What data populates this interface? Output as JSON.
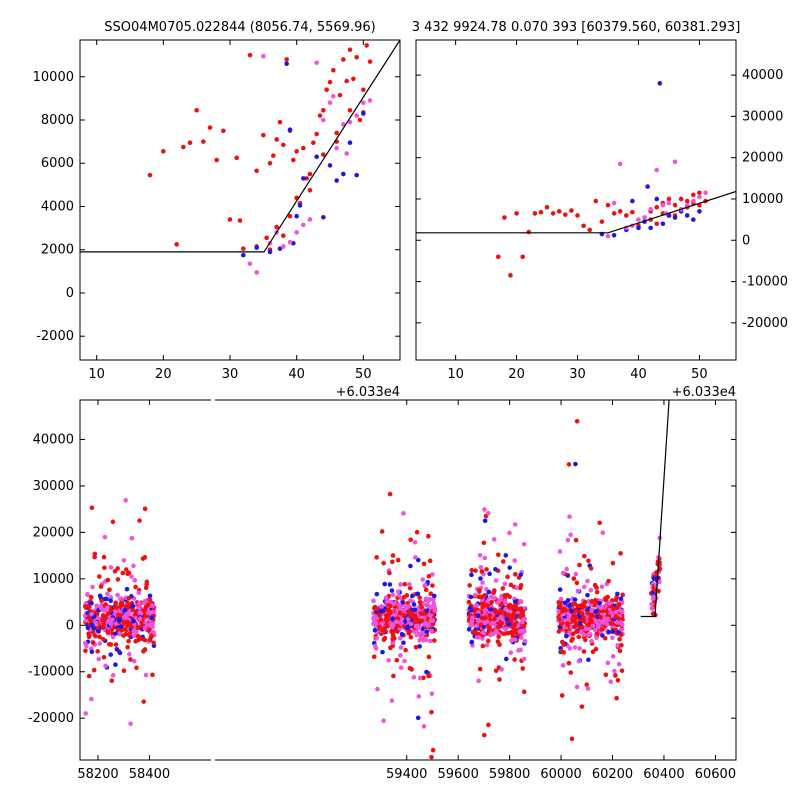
{
  "colors": {
    "red": "#ee1111",
    "blue": "#1a1ae6",
    "pink": "#ee55dd",
    "model_line": "#000000"
  },
  "chart_data": [
    {
      "type": "scatter",
      "title": "SSO04M0705.022844 (8056.74, 5569.96)",
      "x_offset_label": "+6.033e4",
      "xlim": [
        7.5,
        55.5
      ],
      "ylim": [
        -3100,
        11700
      ],
      "xticks": [
        10,
        20,
        30,
        40,
        50
      ],
      "yticks": [
        -2000,
        0,
        2000,
        4000,
        6000,
        8000,
        10000
      ],
      "yaxis_side": "left",
      "model_line": [
        [
          7.5,
          1900
        ],
        [
          35.1,
          1900
        ],
        [
          55.5,
          11700
        ]
      ],
      "series": [
        {
          "color_key": "red",
          "points": [
            [
              18,
              5450
            ],
            [
              20,
              6550
            ],
            [
              22,
              2250
            ],
            [
              23,
              6750
            ],
            [
              24,
              6950
            ],
            [
              25,
              8450
            ],
            [
              26,
              7000
            ],
            [
              27,
              7650
            ],
            [
              28,
              6150
            ],
            [
              29,
              7500
            ],
            [
              30,
              3400
            ],
            [
              31,
              6250
            ],
            [
              31.5,
              3350
            ],
            [
              32,
              2050
            ],
            [
              33,
              11000
            ],
            [
              34,
              5650
            ],
            [
              35,
              7300
            ],
            [
              35.5,
              2550
            ],
            [
              36,
              6000
            ],
            [
              36.5,
              6350
            ],
            [
              37,
              7100
            ],
            [
              37.5,
              7900
            ],
            [
              38,
              6850
            ],
            [
              38.5,
              10800
            ],
            [
              39,
              7500
            ],
            [
              39.5,
              6150
            ],
            [
              40,
              6550
            ],
            [
              40.5,
              4150
            ],
            [
              41,
              6700
            ],
            [
              41.5,
              5300
            ],
            [
              42,
              4750
            ],
            [
              42.5,
              6950
            ],
            [
              43,
              7350
            ],
            [
              43.5,
              8200
            ],
            [
              44,
              8450
            ],
            [
              44.5,
              9400
            ],
            [
              45,
              9750
            ],
            [
              45.5,
              10300
            ],
            [
              46,
              7000
            ],
            [
              46.5,
              9150
            ],
            [
              47,
              10800
            ],
            [
              47.5,
              9800
            ],
            [
              48,
              11250
            ],
            [
              48.5,
              9900
            ],
            [
              49,
              10900
            ],
            [
              49.5,
              8000
            ],
            [
              50,
              8350
            ],
            [
              50.5,
              11450
            ],
            [
              51,
              10700
            ],
            [
              37,
              3050
            ],
            [
              39,
              3550
            ],
            [
              40,
              4400
            ],
            [
              42,
              5500
            ],
            [
              44,
              6400
            ],
            [
              46,
              7400
            ],
            [
              48,
              8450
            ],
            [
              50,
              9400
            ],
            [
              38,
              2650
            ],
            [
              36,
              2000
            ],
            [
              34,
              2150
            ]
          ]
        },
        {
          "color_key": "blue",
          "points": [
            [
              32,
              1750
            ],
            [
              34,
              2100
            ],
            [
              36,
              1900
            ],
            [
              37.5,
              2050
            ],
            [
              38.5,
              10600
            ],
            [
              39.5,
              2300
            ],
            [
              40,
              3550
            ],
            [
              40.5,
              4050
            ],
            [
              41,
              5300
            ],
            [
              44,
              3500
            ],
            [
              45,
              5900
            ],
            [
              46,
              5200
            ],
            [
              47,
              5500
            ],
            [
              48,
              6950
            ],
            [
              49,
              5450
            ],
            [
              50,
              8300
            ],
            [
              39,
              7550
            ],
            [
              43,
              6300
            ]
          ]
        },
        {
          "color_key": "pink",
          "points": [
            [
              33,
              1350
            ],
            [
              34,
              950
            ],
            [
              35,
              10950
            ],
            [
              36,
              2300
            ],
            [
              37,
              2800
            ],
            [
              38,
              2150
            ],
            [
              39,
              2350
            ],
            [
              40,
              2800
            ],
            [
              41,
              3150
            ],
            [
              42,
              3400
            ],
            [
              43,
              10650
            ],
            [
              44,
              8000
            ],
            [
              45,
              8800
            ],
            [
              46,
              6700
            ],
            [
              47,
              7800
            ],
            [
              48,
              7900
            ],
            [
              49,
              8200
            ],
            [
              50,
              8800
            ],
            [
              51,
              8900
            ],
            [
              45.5,
              9100
            ],
            [
              47.5,
              6450
            ]
          ]
        }
      ]
    },
    {
      "type": "scatter",
      "title": "3 432 9924.78 0.070 393 [60379.560, 60381.293]",
      "x_offset_label": "+6.033e4",
      "xlim": [
        3.5,
        56
      ],
      "ylim": [
        -29000,
        48500
      ],
      "xticks": [
        10,
        20,
        30,
        40,
        50
      ],
      "yticks": [
        -20000,
        -10000,
        0,
        10000,
        20000,
        30000,
        40000
      ],
      "yaxis_side": "right",
      "model_line": [
        [
          3.5,
          1800
        ],
        [
          35,
          1800
        ],
        [
          56,
          11800
        ]
      ],
      "series": [
        {
          "color_key": "red",
          "points": [
            [
              17,
              -4000
            ],
            [
              18,
              5500
            ],
            [
              19,
              -8500
            ],
            [
              20,
              6500
            ],
            [
              21,
              -4000
            ],
            [
              22,
              2000
            ],
            [
              23,
              6500
            ],
            [
              24,
              6800
            ],
            [
              25,
              8000
            ],
            [
              26,
              6500
            ],
            [
              27,
              7000
            ],
            [
              28,
              6200
            ],
            [
              29,
              7200
            ],
            [
              30,
              6000
            ],
            [
              31,
              3500
            ],
            [
              32,
              2500
            ],
            [
              33,
              9500
            ],
            [
              34,
              4500
            ],
            [
              35,
              8500
            ],
            [
              36,
              6500
            ],
            [
              37,
              7000
            ],
            [
              38,
              6000
            ],
            [
              39,
              6800
            ],
            [
              40,
              3500
            ],
            [
              41,
              5500
            ],
            [
              42,
              7000
            ],
            [
              43,
              8000
            ],
            [
              44,
              9000
            ],
            [
              45,
              10000
            ],
            [
              46,
              8500
            ],
            [
              47,
              7500
            ],
            [
              48,
              8000
            ],
            [
              49,
              9000
            ],
            [
              50,
              8500
            ],
            [
              51,
              9500
            ],
            [
              42,
              5000
            ],
            [
              44,
              6500
            ],
            [
              46,
              6000
            ],
            [
              48,
              9500
            ],
            [
              43,
              4000
            ],
            [
              45,
              6000
            ],
            [
              47,
              10000
            ],
            [
              49,
              11000
            ],
            [
              50,
              11500
            ]
          ]
        },
        {
          "color_key": "blue",
          "points": [
            [
              34,
              1500
            ],
            [
              36,
              1200
            ],
            [
              38,
              2500
            ],
            [
              39,
              9500
            ],
            [
              40,
              3000
            ],
            [
              41,
              4500
            ],
            [
              42,
              3000
            ],
            [
              43.5,
              38000
            ],
            [
              44,
              4000
            ],
            [
              45,
              6000
            ],
            [
              46,
              5500
            ],
            [
              47,
              7000
            ],
            [
              48,
              6000
            ],
            [
              49,
              5000
            ],
            [
              50,
              7000
            ],
            [
              41.5,
              13000
            ],
            [
              43,
              10000
            ]
          ]
        },
        {
          "color_key": "pink",
          "points": [
            [
              35,
              1000
            ],
            [
              36,
              9000
            ],
            [
              37,
              18500
            ],
            [
              38,
              3000
            ],
            [
              39,
              3500
            ],
            [
              40,
              5000
            ],
            [
              41,
              5500
            ],
            [
              42,
              7500
            ],
            [
              43,
              17000
            ],
            [
              44,
              8500
            ],
            [
              45,
              9000
            ],
            [
              46,
              19000
            ],
            [
              47,
              7500
            ],
            [
              48,
              8500
            ],
            [
              49,
              9500
            ],
            [
              50,
              10500
            ],
            [
              51,
              11500
            ],
            [
              44.5,
              6500
            ]
          ]
        }
      ]
    },
    {
      "type": "scatter",
      "title": "",
      "xlim": [
        58130,
        60680
      ],
      "ylim": [
        -29000,
        48500
      ],
      "xticks": [
        58200,
        58400,
        59400,
        59600,
        59800,
        60000,
        60200,
        60400,
        60600
      ],
      "yticks": [
        -20000,
        -10000,
        0,
        10000,
        20000,
        30000,
        40000
      ],
      "yaxis_side": "left",
      "model_line": [
        [
          60310,
          1900
        ],
        [
          60365,
          1900
        ],
        [
          60420,
          48500
        ]
      ],
      "seasons": [
        {
          "xmin": 58150,
          "xmax": 58420
        },
        {
          "xmin": 59270,
          "xmax": 59510
        },
        {
          "xmin": 59640,
          "xmax": 59860
        },
        {
          "xmin": 59990,
          "xmax": 60240
        },
        {
          "xmin": 60350,
          "xmax": 60385
        }
      ]
    }
  ]
}
